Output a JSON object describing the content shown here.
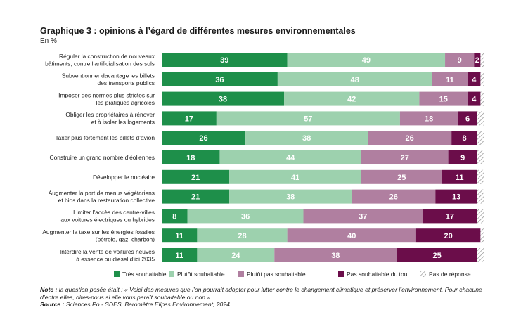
{
  "title": "Graphique 3 : opinions à l’égard de différentes mesures environnementales",
  "unit": "En %",
  "chart_data": {
    "type": "bar",
    "orientation": "horizontal",
    "stacked": true,
    "categories": [
      [
        "Réguler la construction de nouveaux",
        "bâtiments, contre l’artificialisation des sols"
      ],
      [
        "Subventionner davantage les billets",
        "des transports publics"
      ],
      [
        "Imposer des normes plus strictes sur",
        "les pratiques agricoles"
      ],
      [
        "Obliger les propriétaires à rénover",
        "et à isoler les logements"
      ],
      [
        "Taxer plus fortement les billets d’avion"
      ],
      [
        "Construire un grand nombre d’éoliennes"
      ],
      [
        "Développer le nucléaire"
      ],
      [
        "Augmenter la part de menus végétariens",
        "et bios dans la restauration collective"
      ],
      [
        "Limiter l’accès des centre-villes",
        "aux voitures électriques ou hybrides"
      ],
      [
        "Augmenter la taxe sur les énergies fossiles",
        "(pétrole, gaz, charbon)"
      ],
      [
        "Interdire la vente de voitures neuves",
        "à essence ou diesel d’ici 2035"
      ]
    ],
    "series": [
      {
        "name": "Très souhaitable",
        "color": "#1e8f4a",
        "text_color": "#ffffff",
        "values": [
          39,
          36,
          38,
          17,
          26,
          18,
          21,
          21,
          8,
          11,
          11
        ]
      },
      {
        "name": "Plutôt souhaitable",
        "color": "#9dd1ae",
        "text_color": "#ffffff",
        "values": [
          49,
          48,
          42,
          57,
          38,
          44,
          41,
          38,
          36,
          28,
          24
        ]
      },
      {
        "name": "Plutôt pas souhaitable",
        "color": "#b07fa0",
        "text_color": "#ffffff",
        "values": [
          9,
          11,
          15,
          18,
          26,
          27,
          25,
          26,
          37,
          40,
          38
        ]
      },
      {
        "name": "Pas souhaitable du tout",
        "color": "#6b0d4a",
        "text_color": "#ffffff",
        "values": [
          2,
          4,
          4,
          6,
          8,
          9,
          11,
          13,
          17,
          20,
          25
        ]
      },
      {
        "name": "Pas de réponse",
        "color": "hatch",
        "text_color": "#1a1a1a",
        "values": [
          1,
          1,
          1,
          2,
          2,
          2,
          2,
          2,
          2,
          1,
          2
        ]
      }
    ],
    "xlim": [
      0,
      100
    ],
    "grid": false,
    "legend_position": "bottom"
  },
  "note": {
    "label": "Note : ",
    "text": "la question posée était : « Voici des mesures que l’on pourrait adopter pour lutter contre le changement climatique et préserver l’environnement. Pour chacune d’entre elles, dites-nous si elle vous paraît souhaitable ou non ».",
    "source_label": "Source : ",
    "source_text": "Sciences Po - SDES, Baromètre Elipss Environnement, 2024"
  }
}
